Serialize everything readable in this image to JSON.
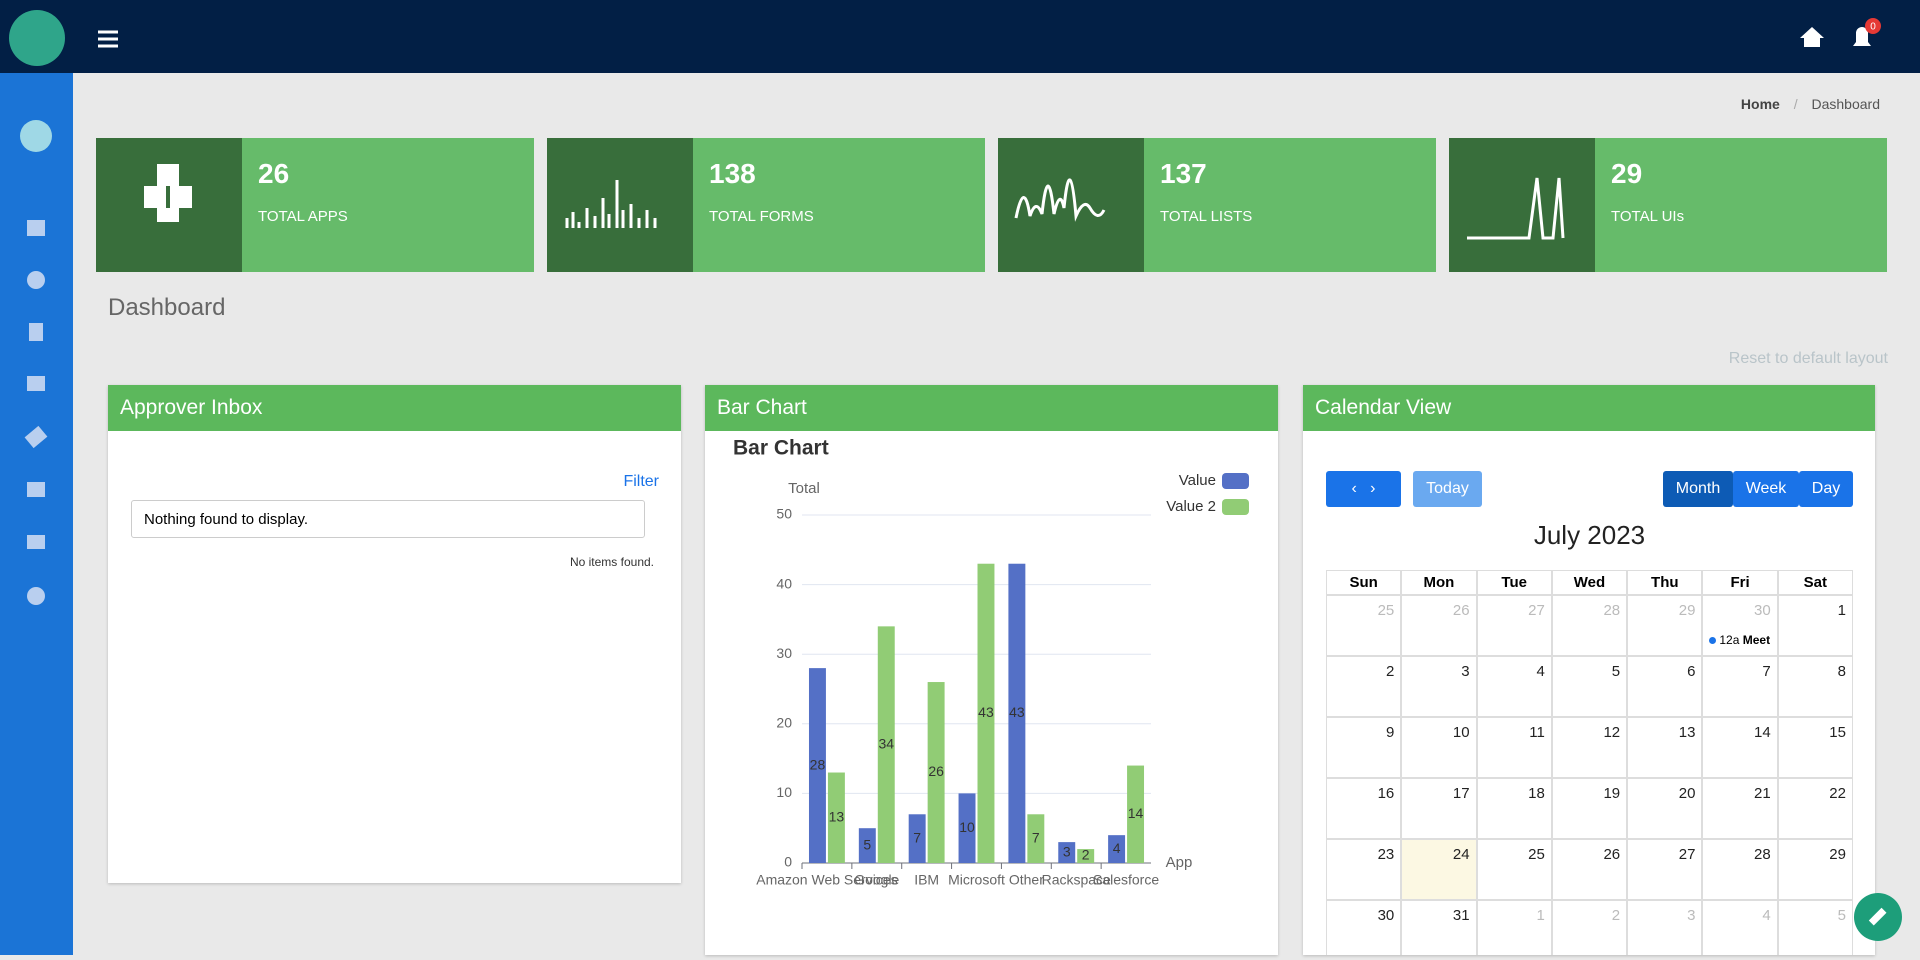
{
  "header": {
    "notification_count": 0
  },
  "breadcrumb": {
    "home": "Home",
    "current": "Dashboard"
  },
  "stats": [
    {
      "value": 26,
      "label": "TOTAL APPS"
    },
    {
      "value": 138,
      "label": "TOTAL FORMS"
    },
    {
      "value": 137,
      "label": "TOTAL LISTS"
    },
    {
      "value": 29,
      "label": "TOTAL UIs"
    }
  ],
  "page_title": "Dashboard",
  "reset_layout": "Reset to default layout",
  "approver_inbox": {
    "title": "Approver Inbox",
    "filter": "Filter",
    "empty_message": "Nothing found to display.",
    "footer": "No items found."
  },
  "bar_panel": {
    "title": "Bar Chart"
  },
  "chart_data": {
    "type": "bar",
    "title": "Bar Chart",
    "y_label": "Total",
    "x_label": "App",
    "categories": [
      "Amazon Web Services",
      "Google",
      "IBM",
      "Microsoft",
      "Other",
      "Rackspace",
      "Salesforce"
    ],
    "series": [
      {
        "name": "Value",
        "color": "#5470c6",
        "values": [
          28,
          5,
          7,
          10,
          43,
          3,
          4
        ]
      },
      {
        "name": "Value 2",
        "color": "#91cc75",
        "values": [
          13,
          34,
          26,
          43,
          7,
          2,
          14
        ]
      }
    ],
    "ylim": [
      0,
      50
    ],
    "yticks": [
      0,
      10,
      20,
      30,
      40,
      50
    ],
    "grid": true
  },
  "calendar": {
    "title": "Calendar View",
    "today_button": "Today",
    "views": [
      "Month",
      "Week",
      "Day"
    ],
    "month_title": "July 2023",
    "weekdays": [
      "Sun",
      "Mon",
      "Tue",
      "Wed",
      "Thu",
      "Fri",
      "Sat"
    ],
    "weeks": [
      [
        25,
        26,
        27,
        28,
        29,
        30,
        1
      ],
      [
        2,
        3,
        4,
        5,
        6,
        7,
        8
      ],
      [
        9,
        10,
        11,
        12,
        13,
        14,
        15
      ],
      [
        16,
        17,
        18,
        19,
        20,
        21,
        22
      ],
      [
        23,
        24,
        25,
        26,
        27,
        28,
        29
      ],
      [
        30,
        31,
        1,
        2,
        3,
        4,
        5
      ]
    ],
    "highlighted_day": 24,
    "event": {
      "time": "12a",
      "title": "Meet"
    }
  }
}
